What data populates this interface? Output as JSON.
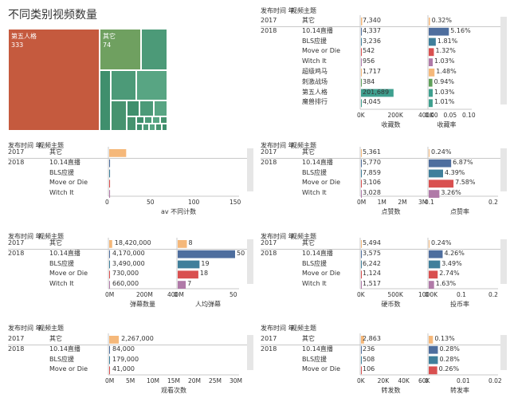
{
  "title": "不同类别视频数量",
  "headers": {
    "year": "发布时间 年",
    "theme": "视频主题"
  },
  "treemap": {
    "cells": [
      {
        "name": "第五人格",
        "value": "333",
        "color": "#c55a3e"
      },
      {
        "name": "其它",
        "value": "74",
        "color": "#6fa060"
      }
    ],
    "other_color": "#4c9a78"
  },
  "chart_data": [
    {
      "id": "collect",
      "type": "bar",
      "rows": [
        {
          "year": "2017",
          "name": "其它",
          "v1": 7340,
          "l1": "7,340",
          "v2": 0.32,
          "l2": "0.32%",
          "c": "#f5b87a"
        },
        {
          "year": "2018",
          "name": "10.14直播",
          "v1": 4337,
          "l1": "4,337",
          "v2": 5.16,
          "l2": "5.16%",
          "c": "#4e6e9e"
        },
        {
          "year": "",
          "name": "BLS应援",
          "v1": 3236,
          "l1": "3,236",
          "v2": 1.81,
          "l2": "1.81%",
          "c": "#3f7f9b"
        },
        {
          "year": "",
          "name": "Move or Die",
          "v1": 542,
          "l1": "542",
          "v2": 1.32,
          "l2": "1.32%",
          "c": "#d95050"
        },
        {
          "year": "",
          "name": "Witch It",
          "v1": 956,
          "l1": "956",
          "v2": 1.03,
          "l2": "1.03%",
          "c": "#b07aa8"
        },
        {
          "year": "",
          "name": "超级鸡马",
          "v1": 1717,
          "l1": "1,717",
          "v2": 1.48,
          "l2": "1.48%",
          "c": "#f5b87a"
        },
        {
          "year": "",
          "name": "刺激战场",
          "v1": 384,
          "l1": "384",
          "v2": 0.94,
          "l2": "0.94%",
          "c": "#5fa05a"
        },
        {
          "year": "",
          "name": "第五人格",
          "v1": 201689,
          "l1": "201,689",
          "v2": 1.03,
          "l2": "1.03%",
          "c": "#3fa08f"
        },
        {
          "year": "",
          "name": "魔兽排行",
          "v1": 4045,
          "l1": "4,045",
          "v2": 1.01,
          "l2": "1.01%",
          "c": "#3fa08f"
        }
      ],
      "axis1": {
        "ticks": [
          "0K",
          "200K",
          "400K"
        ],
        "max": 400000,
        "label": "收藏数"
      },
      "axis2": {
        "ticks": [
          "0.00",
          "0.05",
          "0.10"
        ],
        "max": 10,
        "label": "收藏率"
      }
    },
    {
      "id": "av",
      "type": "bar",
      "rows": [
        {
          "year": "2017",
          "name": "其它",
          "v1": 20,
          "l1": "",
          "c": "#f5b87a"
        },
        {
          "year": "2018",
          "name": "10.14直播",
          "v1": 1,
          "l1": "",
          "c": "#4e6e9e"
        },
        {
          "year": "",
          "name": "BLS应援",
          "v1": 1,
          "l1": "",
          "c": "#3f7f9b"
        },
        {
          "year": "",
          "name": "Move or Die",
          "v1": 1,
          "l1": "",
          "c": "#d95050"
        },
        {
          "year": "",
          "name": "Witch It",
          "v1": 1,
          "l1": "",
          "c": "#b07aa8"
        }
      ],
      "axis1": {
        "ticks": [
          "0",
          "50",
          "100",
          "150"
        ],
        "max": 150,
        "label": "av 不同计数"
      }
    },
    {
      "id": "likes",
      "type": "bar",
      "rows": [
        {
          "year": "2017",
          "name": "其它",
          "v1": 5361,
          "l1": "5,361",
          "v2": 0.24,
          "l2": "0.24%",
          "c": "#f5b87a"
        },
        {
          "year": "2018",
          "name": "10.14直播",
          "v1": 5770,
          "l1": "5,770",
          "v2": 6.87,
          "l2": "6.87%",
          "c": "#4e6e9e"
        },
        {
          "year": "",
          "name": "BLS应援",
          "v1": 7859,
          "l1": "7,859",
          "v2": 4.39,
          "l2": "4.39%",
          "c": "#3f7f9b"
        },
        {
          "year": "",
          "name": "Move or Die",
          "v1": 3106,
          "l1": "3,106",
          "v2": 7.58,
          "l2": "7.58%",
          "c": "#d95050"
        },
        {
          "year": "",
          "name": "Witch It",
          "v1": 3028,
          "l1": "3,028",
          "v2": 3.26,
          "l2": "3.26%",
          "c": "#b07aa8"
        }
      ],
      "axis1": {
        "ticks": [
          "0M",
          "1M",
          "2M",
          "3M"
        ],
        "max": 3000000,
        "label": "点赞数"
      },
      "axis2": {
        "ticks": [
          "0.1",
          "0.2"
        ],
        "max": 20,
        "label": "点赞率"
      }
    },
    {
      "id": "danmaku",
      "type": "bar",
      "rows": [
        {
          "year": "2017",
          "name": "其它",
          "v1": 18420000,
          "l1": "18,420,000",
          "v2": 8,
          "l2": "8",
          "c": "#f5b87a"
        },
        {
          "year": "2018",
          "name": "10.14直播",
          "v1": 4170000,
          "l1": "4,170,000",
          "v2": 50,
          "l2": "50",
          "c": "#4e6e9e"
        },
        {
          "year": "",
          "name": "BLS应援",
          "v1": 3490000,
          "l1": "3,490,000",
          "v2": 19,
          "l2": "19",
          "c": "#3f7f9b"
        },
        {
          "year": "",
          "name": "Move or Die",
          "v1": 730000,
          "l1": "730,000",
          "v2": 18,
          "l2": "18",
          "c": "#d95050"
        },
        {
          "year": "",
          "name": "Witch It",
          "v1": 660000,
          "l1": "660,000",
          "v2": 7,
          "l2": "7",
          "c": "#b07aa8"
        }
      ],
      "axis1": {
        "ticks": [
          "0M",
          "200M",
          "400M"
        ],
        "max": 400000000,
        "label": "弹幕数量"
      },
      "axis2": {
        "ticks": [
          "0",
          "50"
        ],
        "max": 50,
        "label": "人均弹幕"
      }
    },
    {
      "id": "coins",
      "type": "bar",
      "rows": [
        {
          "year": "2017",
          "name": "其它",
          "v1": 5494,
          "l1": "5,494",
          "v2": 0.24,
          "l2": "0.24%",
          "c": "#f5b87a"
        },
        {
          "year": "2018",
          "name": "10.14直播",
          "v1": 3575,
          "l1": "3,575",
          "v2": 4.26,
          "l2": "4.26%",
          "c": "#4e6e9e"
        },
        {
          "year": "",
          "name": "BLS应援",
          "v1": 6242,
          "l1": "6,242",
          "v2": 3.49,
          "l2": "3.49%",
          "c": "#3f7f9b"
        },
        {
          "year": "",
          "name": "Move or Die",
          "v1": 1124,
          "l1": "1,124",
          "v2": 2.74,
          "l2": "2.74%",
          "c": "#d95050"
        },
        {
          "year": "",
          "name": "Witch It",
          "v1": 1517,
          "l1": "1,517",
          "v2": 1.63,
          "l2": "1.63%",
          "c": "#b07aa8"
        }
      ],
      "axis1": {
        "ticks": [
          "0K",
          "500K",
          "1000K"
        ],
        "max": 1000000,
        "label": "硬币数"
      },
      "axis2": {
        "ticks": [
          "0",
          "0.1",
          "0.2"
        ],
        "max": 20,
        "label": "投币率"
      }
    },
    {
      "id": "views",
      "type": "bar",
      "rows": [
        {
          "year": "2017",
          "name": "其它",
          "v1": 2267000,
          "l1": "2,267,000",
          "c": "#f5b87a"
        },
        {
          "year": "2018",
          "name": "10.14直播",
          "v1": 84000,
          "l1": "84,000",
          "c": "#4e6e9e"
        },
        {
          "year": "",
          "name": "BLS应援",
          "v1": 179000,
          "l1": "179,000",
          "c": "#3f7f9b"
        },
        {
          "year": "",
          "name": "Move or Die",
          "v1": 41000,
          "l1": "41,000",
          "c": "#d95050"
        }
      ],
      "axis1": {
        "ticks": [
          "0M",
          "5M",
          "10M",
          "15M",
          "20M",
          "25M",
          "30M"
        ],
        "max": 30000000,
        "label": "观看次数"
      }
    },
    {
      "id": "shares",
      "type": "bar",
      "rows": [
        {
          "year": "2017",
          "name": "其它",
          "v1": 2863,
          "l1": "2,863",
          "v2": 0.13,
          "l2": "0.13%",
          "c": "#f5b87a"
        },
        {
          "year": "2018",
          "name": "10.14直播",
          "v1": 236,
          "l1": "236",
          "v2": 0.28,
          "l2": "0.28%",
          "c": "#4e6e9e"
        },
        {
          "year": "",
          "name": "BLS应援",
          "v1": 508,
          "l1": "508",
          "v2": 0.28,
          "l2": "0.28%",
          "c": "#3f7f9b"
        },
        {
          "year": "",
          "name": "Move or Die",
          "v1": 106,
          "l1": "106",
          "v2": 0.26,
          "l2": "0.26%",
          "c": "#d95050"
        }
      ],
      "axis1": {
        "ticks": [
          "0K",
          "20K",
          "40K",
          "60K"
        ],
        "max": 60000,
        "label": "转发数"
      },
      "axis2": {
        "ticks": [
          "0",
          "0.01",
          "0.02"
        ],
        "max": 2,
        "label": "转发率"
      }
    }
  ]
}
